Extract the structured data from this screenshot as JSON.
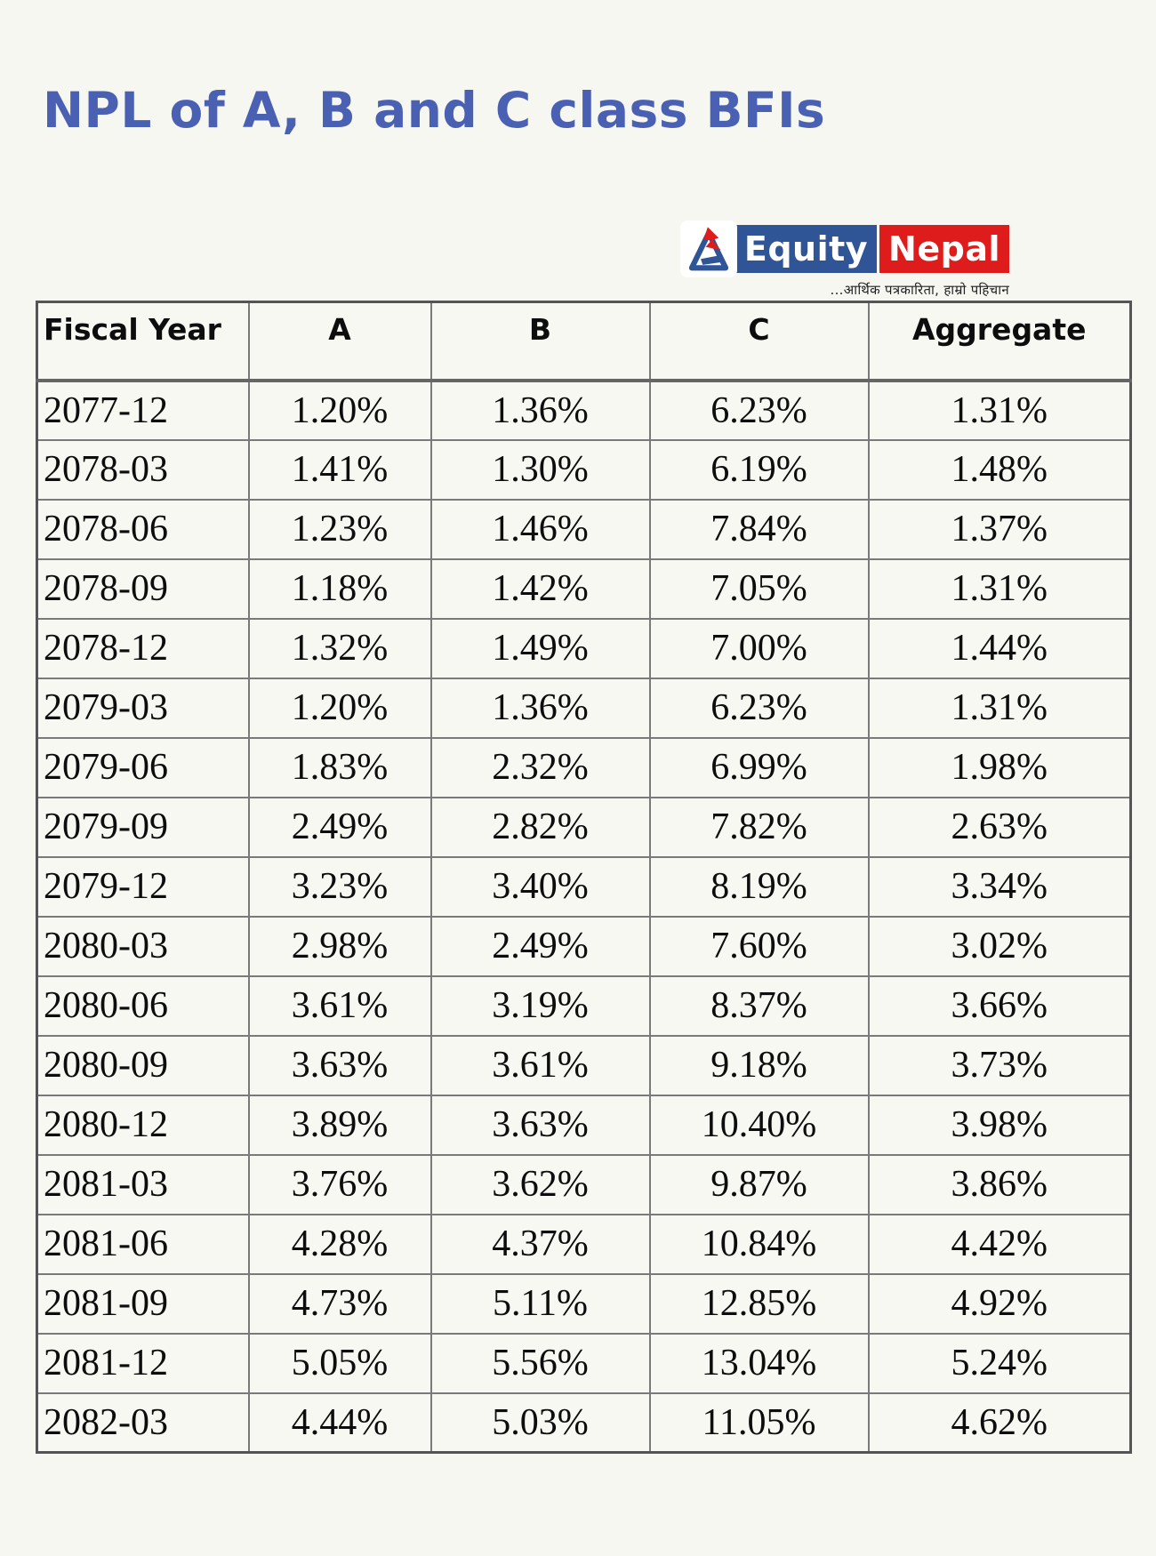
{
  "page": {
    "title": "NPL of A, B and C class BFIs"
  },
  "colors": {
    "background": "#f6f7f1",
    "title_blue": "#4a60b2",
    "logo_blue": "#2f5597",
    "logo_red": "#df1c1c",
    "table_border": "#7a7a7a"
  },
  "logo": {
    "word1": "Equity",
    "word2": "Nepal",
    "tagline": "...आर्थिक पत्रकारिता, हाम्रो पहिचान",
    "icon": "mountain-triangle-icon"
  },
  "chart_data": {
    "type": "table",
    "title": "NPL of A, B and C class BFIs",
    "columns": [
      "Fiscal Year",
      "A",
      "B",
      "C",
      "Aggregate"
    ],
    "rows": [
      [
        "2077-12",
        "1.20%",
        "1.36%",
        "6.23%",
        "1.31%"
      ],
      [
        "2078-03",
        "1.41%",
        "1.30%",
        "6.19%",
        "1.48%"
      ],
      [
        "2078-06",
        "1.23%",
        "1.46%",
        "7.84%",
        "1.37%"
      ],
      [
        "2078-09",
        "1.18%",
        "1.42%",
        "7.05%",
        "1.31%"
      ],
      [
        "2078-12",
        "1.32%",
        "1.49%",
        "7.00%",
        "1.44%"
      ],
      [
        "2079-03",
        "1.20%",
        "1.36%",
        "6.23%",
        "1.31%"
      ],
      [
        "2079-06",
        "1.83%",
        "2.32%",
        "6.99%",
        "1.98%"
      ],
      [
        "2079-09",
        "2.49%",
        "2.82%",
        "7.82%",
        "2.63%"
      ],
      [
        "2079-12",
        "3.23%",
        "3.40%",
        "8.19%",
        "3.34%"
      ],
      [
        "2080-03",
        "2.98%",
        "2.49%",
        "7.60%",
        "3.02%"
      ],
      [
        "2080-06",
        "3.61%",
        "3.19%",
        "8.37%",
        "3.66%"
      ],
      [
        "2080-09",
        "3.63%",
        "3.61%",
        "9.18%",
        "3.73%"
      ],
      [
        "2080-12",
        "3.89%",
        "3.63%",
        "10.40%",
        "3.98%"
      ],
      [
        "2081-03",
        "3.76%",
        "3.62%",
        "9.87%",
        "3.86%"
      ],
      [
        "2081-06",
        "4.28%",
        "4.37%",
        "10.84%",
        "4.42%"
      ],
      [
        "2081-09",
        "4.73%",
        "5.11%",
        "12.85%",
        "4.92%"
      ],
      [
        "2081-12",
        "5.05%",
        "5.56%",
        "13.04%",
        "5.24%"
      ],
      [
        "2082-03",
        "4.44%",
        "5.03%",
        "11.05%",
        "4.62%"
      ]
    ]
  }
}
